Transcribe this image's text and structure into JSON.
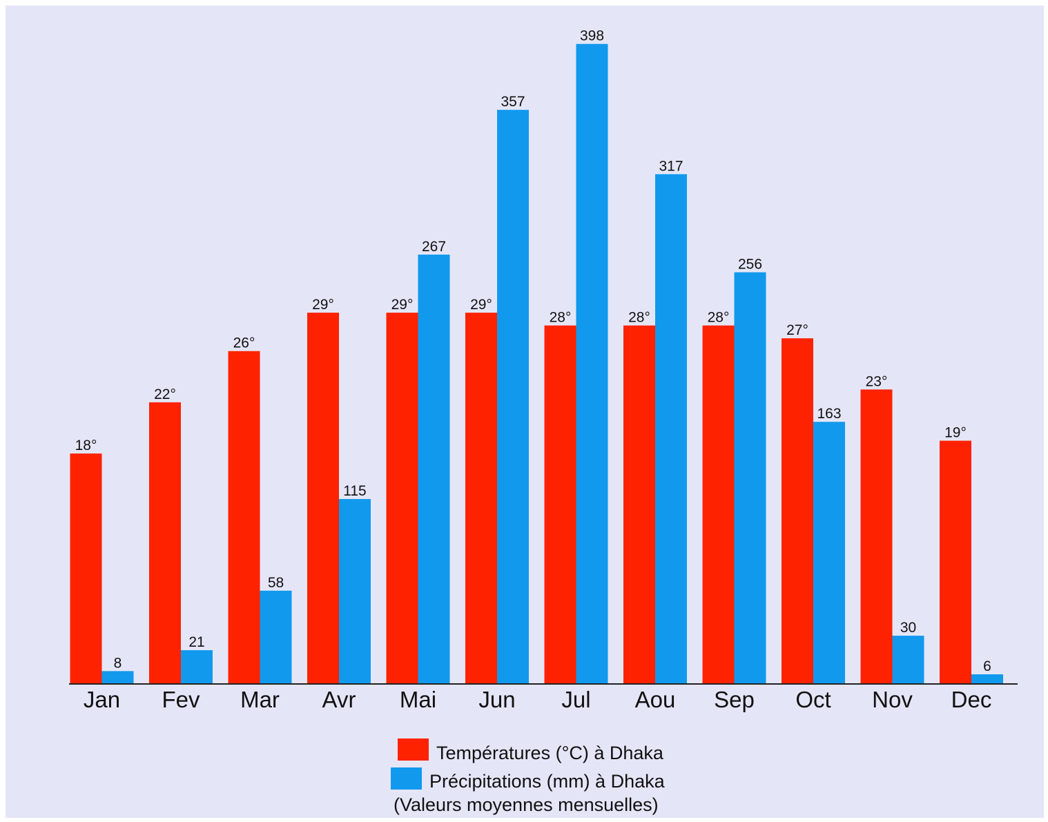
{
  "chart_data": {
    "type": "bar",
    "categories": [
      "Jan",
      "Fev",
      "Mar",
      "Avr",
      "Mai",
      "Jun",
      "Jul",
      "Aou",
      "Sep",
      "Oct",
      "Nov",
      "Dec"
    ],
    "series": [
      {
        "name": "Températures (°C) à Dhaka",
        "unit": "°C",
        "color": "#ff2200",
        "values": [
          18,
          22,
          26,
          29,
          29,
          29,
          28,
          28,
          28,
          27,
          23,
          19
        ],
        "labels": [
          "18°",
          "22°",
          "26°",
          "29°",
          "29°",
          "29°",
          "28°",
          "28°",
          "28°",
          "27°",
          "23°",
          "19°"
        ]
      },
      {
        "name": "Précipitations (mm) à Dhaka",
        "unit": "mm",
        "color": "#1199ee",
        "values": [
          8,
          21,
          58,
          115,
          267,
          357,
          398,
          317,
          256,
          163,
          30,
          6
        ],
        "labels": [
          "8",
          "21",
          "58",
          "115",
          "267",
          "357",
          "398",
          "317",
          "256",
          "163",
          "30",
          "6"
        ]
      }
    ],
    "legend_position": "bottom-center",
    "legend_note": "(Valeurs moyennes mensuelles)",
    "grid": false
  },
  "colors": {
    "background": "#e4e6f7",
    "axis": "#222222"
  }
}
